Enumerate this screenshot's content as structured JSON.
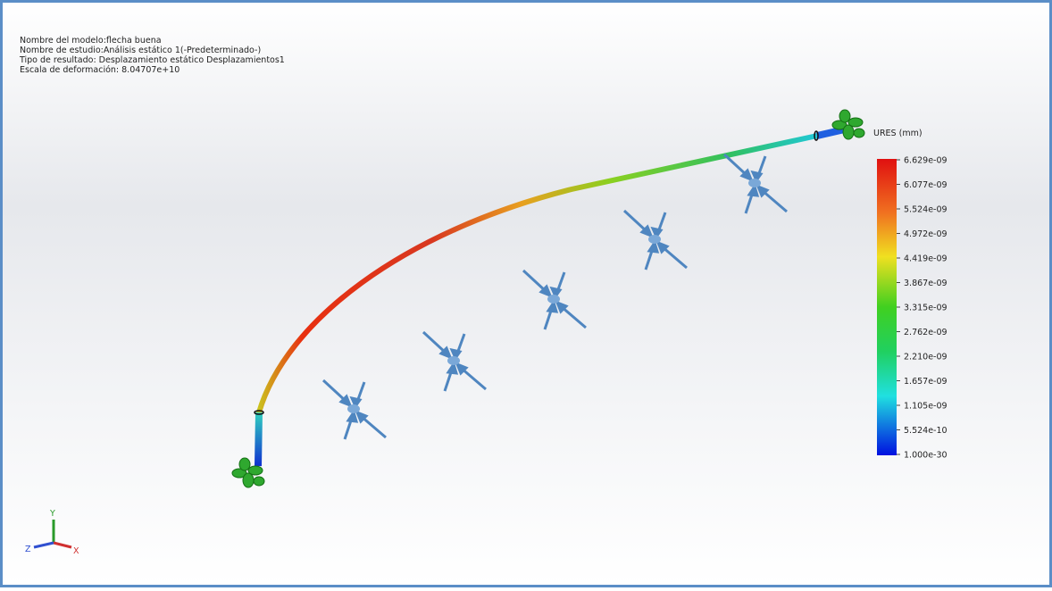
{
  "info": {
    "lines": [
      "Nombre del modelo:flecha buena",
      "Nombre de estudio:Análisis estático 1(-Predeterminado-)",
      "Tipo de resultado: Desplazamiento estático Desplazamientos1",
      "Escala de deformación: 8.04707e+10"
    ]
  },
  "legend": {
    "title": "URES (mm)",
    "labels": [
      "6.629e-09",
      "6.077e-09",
      "5.524e-09",
      "4.972e-09",
      "4.419e-09",
      "3.867e-09",
      "3.315e-09",
      "2.762e-09",
      "2.210e-09",
      "1.657e-09",
      "1.105e-09",
      "5.524e-10",
      "1.000e-30"
    ]
  },
  "triad": {
    "x": "X",
    "y": "Y",
    "z": "Z"
  }
}
